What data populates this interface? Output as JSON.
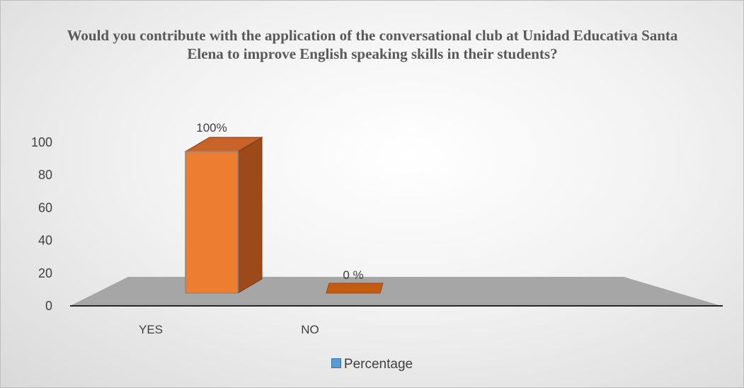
{
  "chart_data": {
    "type": "bar",
    "title": "Would you contribute with the application of the conversational club at Unidad Educativa Santa Elena to improve English speaking skills in their students?",
    "categories": [
      "YES",
      "NO"
    ],
    "series": [
      {
        "name": "Percentage",
        "values": [
          100,
          0
        ],
        "data_labels": [
          "100%",
          "0 %"
        ]
      }
    ],
    "y_ticks": [
      "0",
      "20",
      "40",
      "60",
      "80",
      "100"
    ],
    "ylim": [
      0,
      100
    ],
    "grid": false,
    "legend": "bottom",
    "three_d": true,
    "colors": {
      "bar_front": "#ed7d31",
      "bar_side": "#9c4a1a",
      "floor": "#a6a6a6",
      "legend_swatch": "#5b9bd5"
    }
  }
}
